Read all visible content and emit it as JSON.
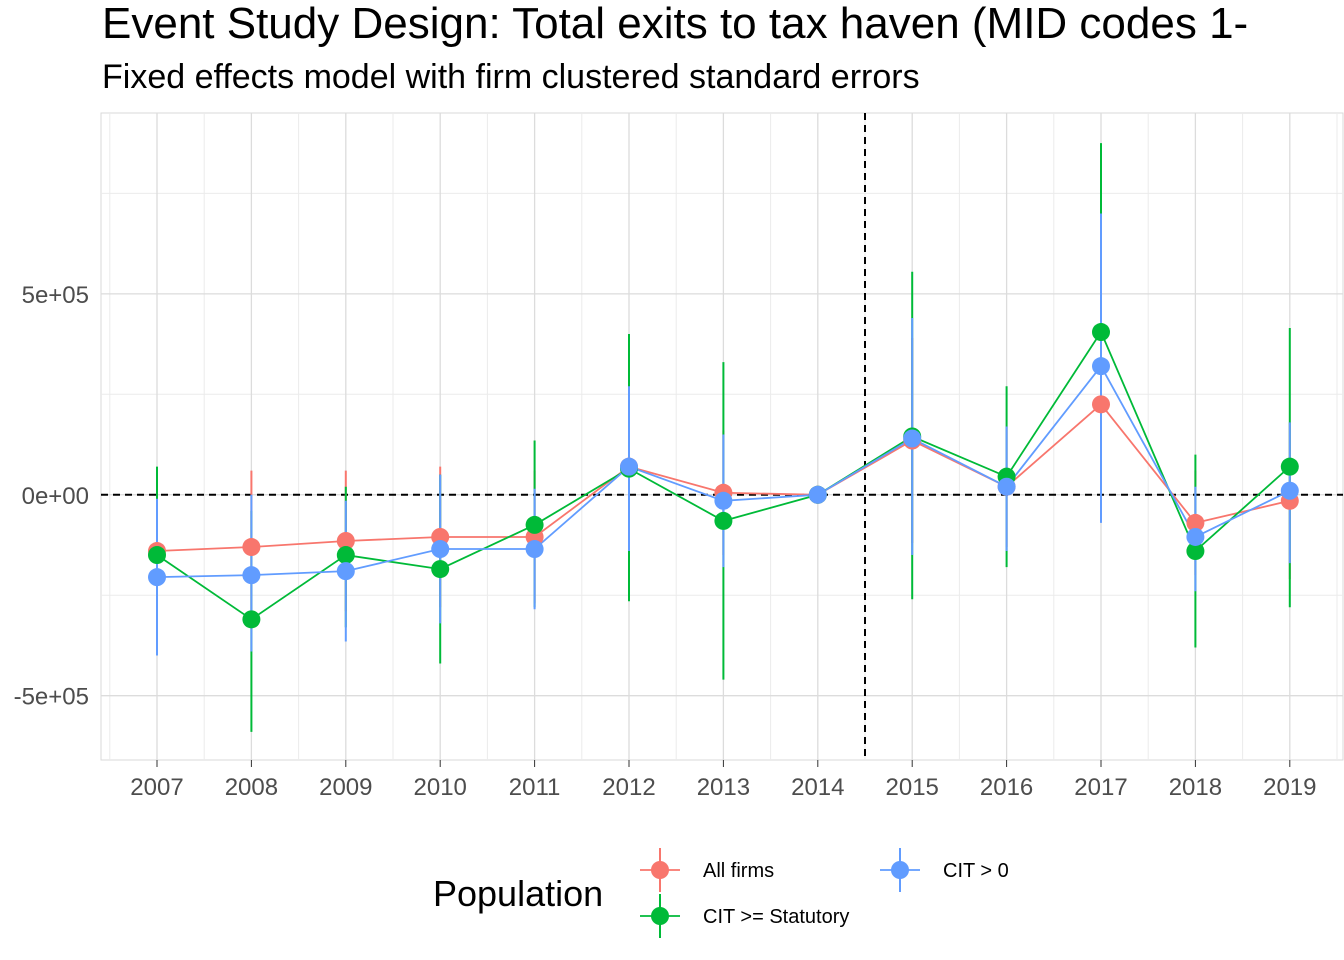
{
  "chart_data": {
    "type": "line",
    "title": "Event Study Design: Total exits to tax haven (MID codes 1-",
    "subtitle": "Fixed effects model with firm clustered standard errors",
    "xlabel": "",
    "ylabel": "",
    "categories": [
      "2007",
      "2008",
      "2009",
      "2010",
      "2011",
      "2012",
      "2013",
      "2014",
      "2015",
      "2016",
      "2017",
      "2018",
      "2019"
    ],
    "y_ticks": [
      -500000,
      0,
      500000
    ],
    "y_tick_labels": [
      "-5e+05",
      "0e+00",
      "5e+05"
    ],
    "ylim": [
      -660000,
      950000
    ],
    "reference_lines": {
      "hline_y": 0,
      "vline_between": [
        "2014",
        "2015"
      ],
      "style": "dashed"
    },
    "grid": true,
    "legend": {
      "title": "Population",
      "position": "bottom"
    },
    "series": [
      {
        "name": "All firms",
        "color": "#F8766D",
        "values": [
          -140000,
          -130000,
          -115000,
          -105000,
          -105000,
          70000,
          5000,
          0,
          135000,
          20000,
          225000,
          -70000,
          -15000
        ],
        "lower": [
          -310000,
          -320000,
          -290000,
          -280000,
          -270000,
          -100000,
          -150000,
          0,
          -120000,
          -130000,
          40000,
          -200000,
          -210000
        ],
        "upper": [
          30000,
          60000,
          60000,
          70000,
          60000,
          240000,
          160000,
          0,
          390000,
          170000,
          410000,
          60000,
          180000
        ]
      },
      {
        "name": "CIT >= Statutory",
        "color": "#00BA38",
        "values": [
          -150000,
          -310000,
          -150000,
          -185000,
          -75000,
          65000,
          -65000,
          0,
          145000,
          45000,
          405000,
          -140000,
          70000
        ],
        "lower": [
          -370000,
          -590000,
          -330000,
          -420000,
          -280000,
          -265000,
          -460000,
          0,
          -260000,
          -180000,
          -60000,
          -380000,
          -280000
        ],
        "upper": [
          70000,
          -40000,
          20000,
          50000,
          135000,
          400000,
          330000,
          0,
          555000,
          270000,
          875000,
          100000,
          415000
        ]
      },
      {
        "name": "CIT > 0",
        "color": "#619CFF",
        "values": [
          -205000,
          -200000,
          -190000,
          -135000,
          -135000,
          70000,
          -15000,
          0,
          140000,
          20000,
          320000,
          -105000,
          10000
        ],
        "lower": [
          -400000,
          -390000,
          -365000,
          -320000,
          -285000,
          -140000,
          -180000,
          0,
          -150000,
          -140000,
          -70000,
          -240000,
          -170000
        ],
        "upper": [
          -10000,
          0,
          -15000,
          50000,
          15000,
          270000,
          150000,
          0,
          440000,
          170000,
          700000,
          20000,
          180000
        ]
      }
    ]
  }
}
